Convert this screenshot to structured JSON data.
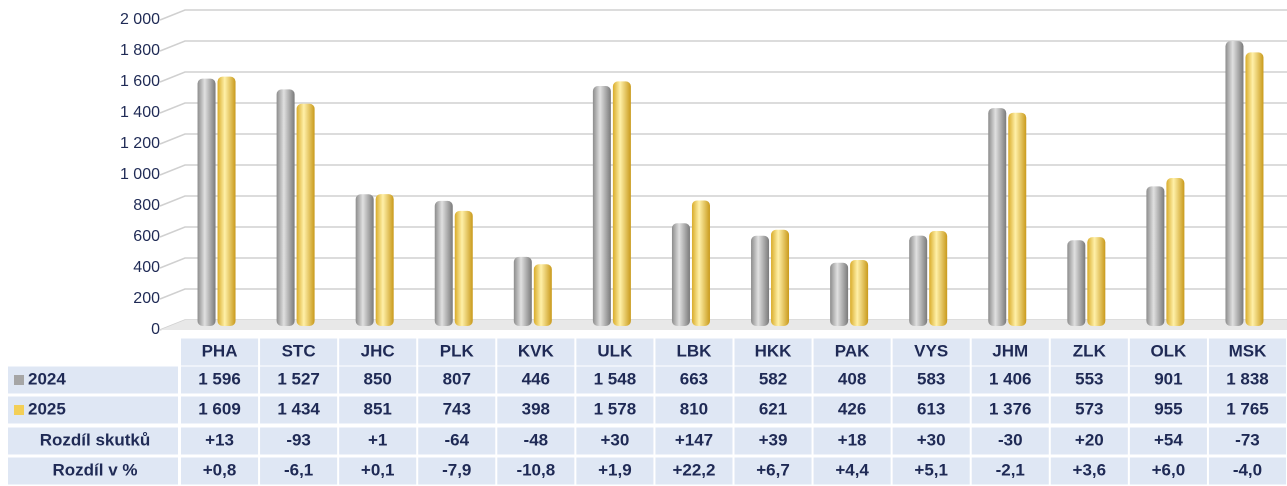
{
  "chart_data": {
    "type": "bar",
    "categories": [
      "PHA",
      "STC",
      "JHC",
      "PLK",
      "KVK",
      "ULK",
      "LBK",
      "HKK",
      "PAK",
      "VYS",
      "JHM",
      "ZLK",
      "OLK",
      "MSK"
    ],
    "series": [
      {
        "name": "2024",
        "color": "#a6a6a6",
        "values": [
          1596,
          1527,
          850,
          807,
          446,
          1548,
          663,
          582,
          408,
          583,
          1406,
          553,
          901,
          1838
        ],
        "value_labels": [
          "1 596",
          "1 527",
          "850",
          "807",
          "446",
          "1 548",
          "663",
          "582",
          "408",
          "583",
          "1 406",
          "553",
          "901",
          "1 838"
        ]
      },
      {
        "name": "2025",
        "color": "#f3cf57",
        "values": [
          1609,
          1434,
          851,
          743,
          398,
          1578,
          810,
          621,
          426,
          613,
          1376,
          573,
          955,
          1765
        ],
        "value_labels": [
          "1 609",
          "1 434",
          "851",
          "743",
          "398",
          "1 578",
          "810",
          "621",
          "426",
          "613",
          "1 376",
          "573",
          "955",
          "1 765"
        ]
      }
    ],
    "table_rows": [
      {
        "name": "Rozdíl skutků",
        "values": [
          "+13",
          "-93",
          "+1",
          "-64",
          "-48",
          "+30",
          "+147",
          "+39",
          "+18",
          "+30",
          "-30",
          "+20",
          "+54",
          "-73"
        ]
      },
      {
        "name": "Rozdíl v %",
        "values": [
          "+0,8",
          "-6,1",
          "+0,1",
          "-7,9",
          "-10,8",
          "+1,9",
          "+22,2",
          "+6,7",
          "+4,4",
          "+5,1",
          "-2,1",
          "+3,6",
          "+6,0",
          "-4,0"
        ]
      }
    ],
    "ylim": [
      0,
      2000
    ],
    "yticks": [
      0,
      200,
      400,
      600,
      800,
      {
        "value": 1000,
        "label": "1 000"
      },
      {
        "value": 1200,
        "label": "1 200"
      },
      {
        "value": 1400,
        "label": "1 400"
      },
      {
        "value": 1600,
        "label": "1 600"
      },
      {
        "value": 1800,
        "label": "1 800"
      },
      {
        "value": 2000,
        "label": "2 000"
      }
    ],
    "grid": true
  }
}
